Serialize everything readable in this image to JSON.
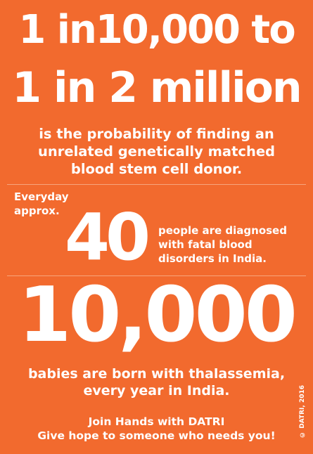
{
  "headline": {
    "line1": "1 in10,000 to",
    "line2": "1 in 2 million"
  },
  "probability": {
    "line1": "is the probability of finding an",
    "line2": "unrelated genetically matched",
    "line3": "blood stem cell donor."
  },
  "daily": {
    "prefix_line1": "Everyday",
    "prefix_line2": "approx.",
    "number": "40",
    "suffix_line1": "people are diagnosed",
    "suffix_line2": "with fatal blood",
    "suffix_line3": "disorders in India."
  },
  "thalassemia": {
    "number": "10,000",
    "line1": "babies are born with thalassemia,",
    "line2": "every year in India."
  },
  "cta": {
    "line1": "Join Hands with DATRI",
    "line2": "Give hope to someone who needs you!"
  },
  "copyright": "© DATRI, 2016",
  "colors": {
    "background": "#f26a2e",
    "text": "#ffffff"
  }
}
